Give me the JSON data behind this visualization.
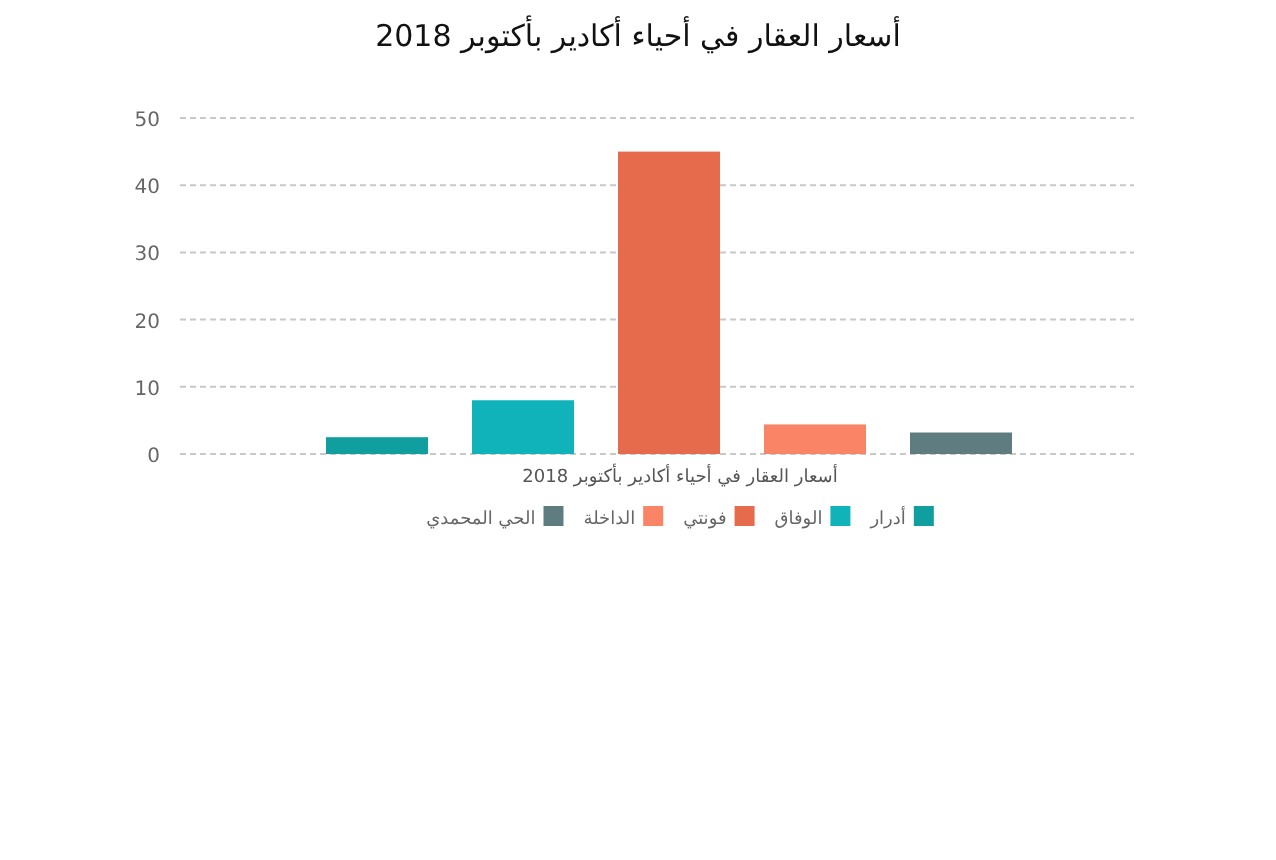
{
  "chart_data": {
    "type": "bar",
    "title": "أسعار العقار في أحياء أكادير بأكتوبر 2018",
    "xlabel": "أسعار العقار في أحياء أكادير بأكتوبر 2018",
    "categories": [
      null
    ],
    "series": [
      {
        "name": "أدرار",
        "color": "#109e9f",
        "values": [
          2.5
        ]
      },
      {
        "name": "الوفاق",
        "color": "#10b3ba",
        "values": [
          8
        ]
      },
      {
        "name": "فونتي",
        "color": "#e56b4c",
        "values": [
          45
        ]
      },
      {
        "name": "الداخلة",
        "color": "#f98466",
        "values": [
          4.4
        ]
      },
      {
        "name": "الحي المحمدي",
        "color": "#5f7d80",
        "values": [
          3.2
        ]
      }
    ],
    "ylim": [
      0,
      50
    ],
    "yticks": [
      0,
      10,
      20,
      30,
      40,
      50
    ],
    "grid": "y",
    "legend": "bottom"
  }
}
